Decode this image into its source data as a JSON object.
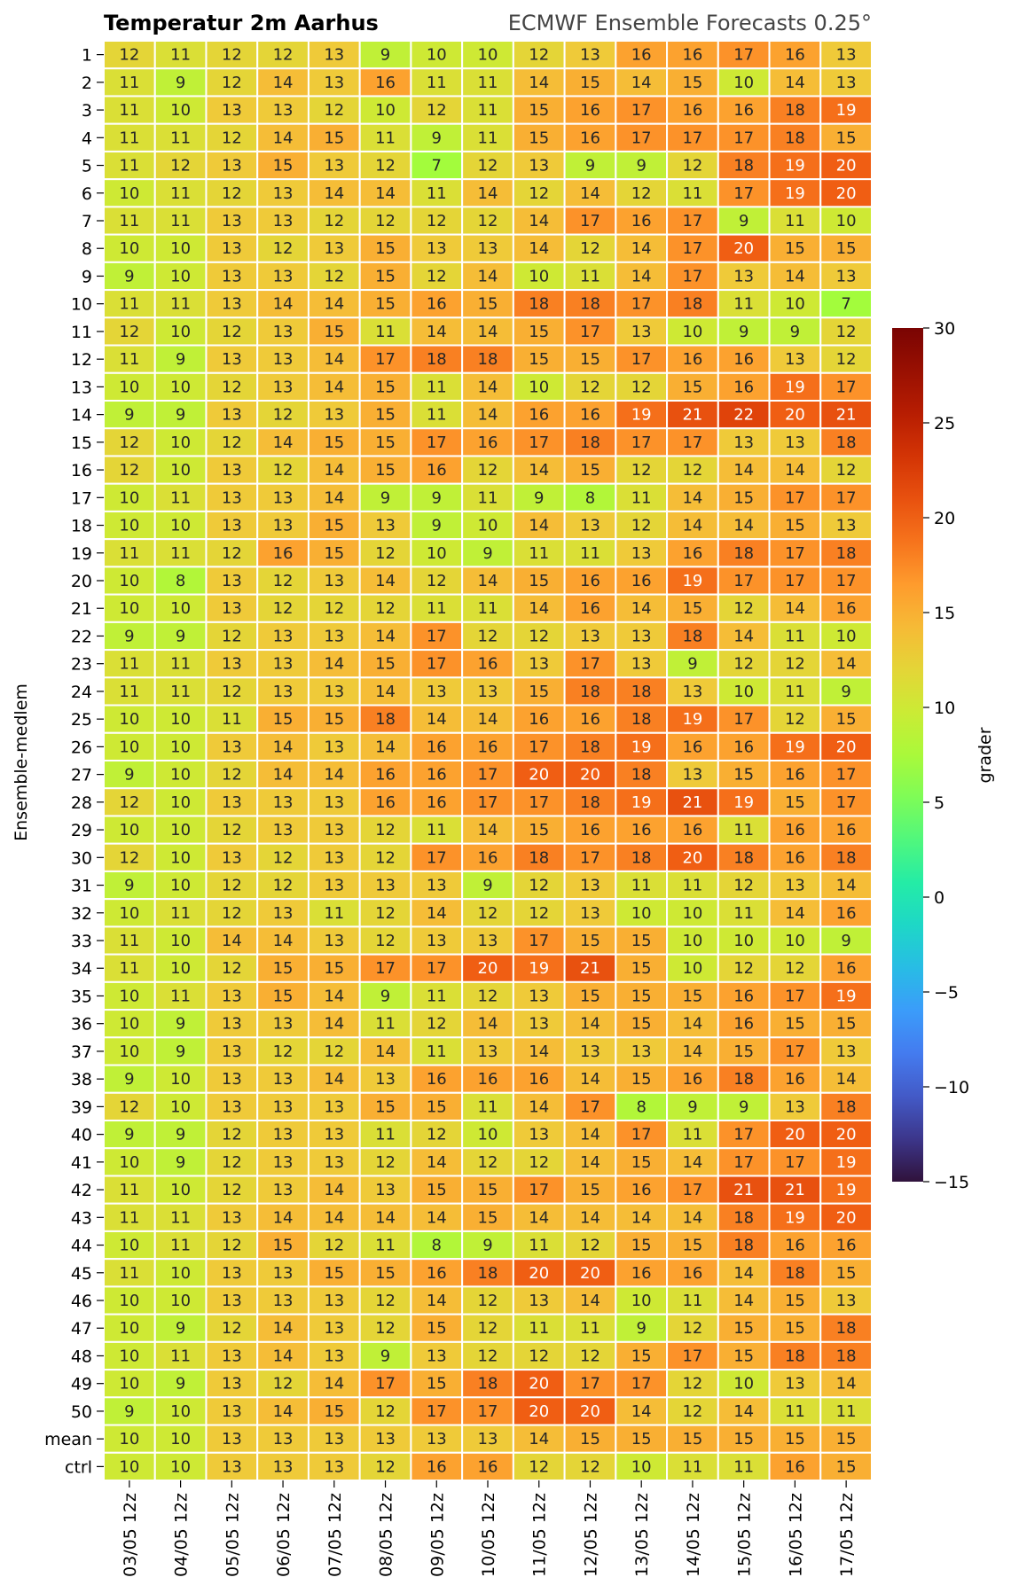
{
  "chart_data": {
    "type": "heatmap",
    "title": "Temperatur 2m Aarhus",
    "subtitle": "ECMWF Ensemble Forecasts 0.25°",
    "ylabel": "Ensemble-medlem",
    "colorbar_label": "grader",
    "colorbar_range": [
      -15,
      30
    ],
    "colorbar_ticks": [
      -15,
      -10,
      -5,
      0,
      5,
      10,
      15,
      20,
      25,
      30
    ],
    "colormap": "turbo",
    "columns": [
      "03/05 12z",
      "04/05 12z",
      "05/05 12z",
      "06/05 12z",
      "07/05 12z",
      "08/05 12z",
      "09/05 12z",
      "10/05 12z",
      "11/05 12z",
      "12/05 12z",
      "13/05 12z",
      "14/05 12z",
      "15/05 12z",
      "16/05 12z",
      "17/05 12z"
    ],
    "rows": [
      "1",
      "2",
      "3",
      "4",
      "5",
      "6",
      "7",
      "8",
      "9",
      "10",
      "11",
      "12",
      "13",
      "14",
      "15",
      "16",
      "17",
      "18",
      "19",
      "20",
      "21",
      "22",
      "23",
      "24",
      "25",
      "26",
      "27",
      "28",
      "29",
      "30",
      "31",
      "32",
      "33",
      "34",
      "35",
      "36",
      "37",
      "38",
      "39",
      "40",
      "41",
      "42",
      "43",
      "44",
      "45",
      "46",
      "47",
      "48",
      "49",
      "50",
      "mean",
      "ctrl"
    ],
    "values": [
      [
        12,
        11,
        12,
        12,
        13,
        9,
        10,
        10,
        12,
        13,
        16,
        16,
        17,
        16,
        13
      ],
      [
        11,
        9,
        12,
        14,
        13,
        16,
        11,
        11,
        14,
        15,
        14,
        15,
        10,
        14,
        13
      ],
      [
        11,
        10,
        13,
        13,
        12,
        10,
        12,
        11,
        15,
        16,
        17,
        16,
        16,
        18,
        19
      ],
      [
        11,
        11,
        12,
        14,
        15,
        11,
        9,
        11,
        15,
        16,
        17,
        17,
        17,
        18,
        15
      ],
      [
        11,
        12,
        13,
        15,
        13,
        12,
        7,
        12,
        13,
        9,
        9,
        12,
        18,
        19,
        20
      ],
      [
        10,
        11,
        12,
        13,
        14,
        14,
        11,
        14,
        12,
        14,
        12,
        11,
        17,
        19,
        20
      ],
      [
        11,
        11,
        13,
        13,
        12,
        12,
        12,
        12,
        14,
        17,
        16,
        17,
        9,
        11,
        10
      ],
      [
        10,
        10,
        13,
        12,
        13,
        15,
        13,
        13,
        14,
        12,
        14,
        17,
        20,
        15,
        15
      ],
      [
        9,
        10,
        13,
        13,
        12,
        15,
        12,
        14,
        10,
        11,
        14,
        17,
        13,
        14,
        13
      ],
      [
        11,
        11,
        13,
        14,
        14,
        15,
        16,
        15,
        18,
        18,
        17,
        18,
        11,
        10,
        7
      ],
      [
        12,
        10,
        12,
        13,
        15,
        11,
        14,
        14,
        15,
        17,
        13,
        10,
        9,
        9,
        12
      ],
      [
        11,
        9,
        13,
        13,
        14,
        17,
        18,
        18,
        15,
        15,
        17,
        16,
        16,
        13,
        12
      ],
      [
        10,
        10,
        12,
        13,
        14,
        15,
        11,
        14,
        10,
        12,
        12,
        15,
        16,
        19,
        17
      ],
      [
        9,
        9,
        13,
        12,
        13,
        15,
        11,
        14,
        16,
        16,
        19,
        21,
        22,
        20,
        21
      ],
      [
        12,
        10,
        12,
        14,
        15,
        15,
        17,
        16,
        17,
        18,
        17,
        17,
        13,
        13,
        18
      ],
      [
        12,
        10,
        13,
        12,
        14,
        15,
        16,
        12,
        14,
        15,
        12,
        12,
        14,
        14,
        12
      ],
      [
        10,
        11,
        13,
        13,
        14,
        9,
        9,
        11,
        9,
        8,
        11,
        14,
        15,
        17,
        17
      ],
      [
        10,
        10,
        13,
        13,
        15,
        13,
        9,
        10,
        14,
        13,
        12,
        14,
        14,
        15,
        13
      ],
      [
        11,
        11,
        12,
        16,
        15,
        12,
        10,
        9,
        11,
        11,
        13,
        16,
        18,
        17,
        18
      ],
      [
        10,
        8,
        13,
        12,
        13,
        14,
        12,
        14,
        15,
        16,
        16,
        19,
        17,
        17,
        17
      ],
      [
        10,
        10,
        13,
        12,
        12,
        12,
        11,
        11,
        14,
        16,
        14,
        15,
        12,
        14,
        16
      ],
      [
        9,
        9,
        12,
        13,
        13,
        14,
        17,
        12,
        12,
        13,
        13,
        18,
        14,
        11,
        10
      ],
      [
        11,
        11,
        13,
        13,
        14,
        15,
        17,
        16,
        13,
        17,
        13,
        9,
        12,
        12,
        14
      ],
      [
        11,
        11,
        12,
        13,
        13,
        14,
        13,
        13,
        15,
        18,
        18,
        13,
        10,
        11,
        9
      ],
      [
        10,
        10,
        11,
        15,
        15,
        18,
        14,
        14,
        16,
        16,
        18,
        19,
        17,
        12,
        15
      ],
      [
        10,
        10,
        13,
        14,
        13,
        14,
        16,
        16,
        17,
        18,
        19,
        16,
        16,
        19,
        20
      ],
      [
        9,
        10,
        12,
        14,
        14,
        16,
        16,
        17,
        20,
        20,
        18,
        13,
        15,
        16,
        17
      ],
      [
        12,
        10,
        13,
        13,
        13,
        16,
        16,
        17,
        17,
        18,
        19,
        21,
        19,
        15,
        17
      ],
      [
        10,
        10,
        12,
        13,
        13,
        12,
        11,
        14,
        15,
        16,
        16,
        16,
        11,
        16,
        16
      ],
      [
        12,
        10,
        13,
        12,
        13,
        12,
        17,
        16,
        18,
        17,
        18,
        20,
        18,
        16,
        18
      ],
      [
        9,
        10,
        12,
        12,
        13,
        13,
        13,
        9,
        12,
        13,
        11,
        11,
        12,
        13,
        14
      ],
      [
        10,
        11,
        12,
        13,
        11,
        12,
        14,
        12,
        12,
        13,
        10,
        10,
        11,
        14,
        16
      ],
      [
        11,
        10,
        14,
        14,
        13,
        12,
        13,
        13,
        17,
        15,
        15,
        10,
        10,
        10,
        9
      ],
      [
        11,
        10,
        12,
        15,
        15,
        17,
        17,
        20,
        19,
        21,
        15,
        10,
        12,
        12,
        16
      ],
      [
        10,
        11,
        13,
        15,
        14,
        9,
        11,
        12,
        13,
        15,
        15,
        15,
        16,
        17,
        19
      ],
      [
        10,
        9,
        13,
        13,
        14,
        11,
        12,
        14,
        13,
        14,
        15,
        14,
        16,
        15,
        15
      ],
      [
        10,
        9,
        13,
        12,
        12,
        14,
        11,
        13,
        14,
        13,
        13,
        14,
        15,
        17,
        13
      ],
      [
        9,
        10,
        13,
        13,
        14,
        13,
        16,
        16,
        16,
        14,
        15,
        16,
        18,
        16,
        14
      ],
      [
        12,
        10,
        13,
        13,
        13,
        15,
        15,
        11,
        14,
        17,
        8,
        9,
        9,
        13,
        18
      ],
      [
        9,
        9,
        12,
        13,
        13,
        11,
        12,
        10,
        13,
        14,
        17,
        11,
        17,
        20,
        20
      ],
      [
        10,
        9,
        12,
        13,
        13,
        12,
        14,
        12,
        12,
        14,
        15,
        14,
        17,
        17,
        19
      ],
      [
        11,
        10,
        12,
        13,
        14,
        13,
        15,
        15,
        17,
        15,
        16,
        17,
        21,
        21,
        19
      ],
      [
        11,
        11,
        13,
        14,
        14,
        14,
        14,
        15,
        14,
        14,
        14,
        14,
        18,
        19,
        20
      ],
      [
        10,
        11,
        12,
        15,
        12,
        11,
        8,
        9,
        11,
        12,
        15,
        15,
        18,
        16,
        16
      ],
      [
        11,
        10,
        13,
        13,
        15,
        15,
        16,
        18,
        20,
        20,
        16,
        16,
        14,
        18,
        15
      ],
      [
        10,
        10,
        13,
        13,
        13,
        12,
        14,
        12,
        13,
        14,
        10,
        11,
        14,
        15,
        13
      ],
      [
        10,
        9,
        12,
        14,
        13,
        12,
        15,
        12,
        11,
        11,
        9,
        12,
        15,
        15,
        18
      ],
      [
        10,
        11,
        13,
        14,
        13,
        9,
        13,
        12,
        12,
        12,
        15,
        17,
        15,
        18,
        18
      ],
      [
        10,
        9,
        13,
        12,
        14,
        17,
        15,
        18,
        20,
        17,
        17,
        12,
        10,
        13,
        14
      ],
      [
        9,
        10,
        13,
        14,
        15,
        12,
        17,
        17,
        20,
        20,
        14,
        12,
        14,
        11,
        11
      ],
      [
        10,
        10,
        13,
        13,
        13,
        13,
        13,
        13,
        14,
        15,
        15,
        15,
        15,
        15,
        15
      ],
      [
        10,
        10,
        13,
        13,
        13,
        12,
        16,
        16,
        12,
        12,
        10,
        11,
        11,
        16,
        15
      ]
    ]
  }
}
